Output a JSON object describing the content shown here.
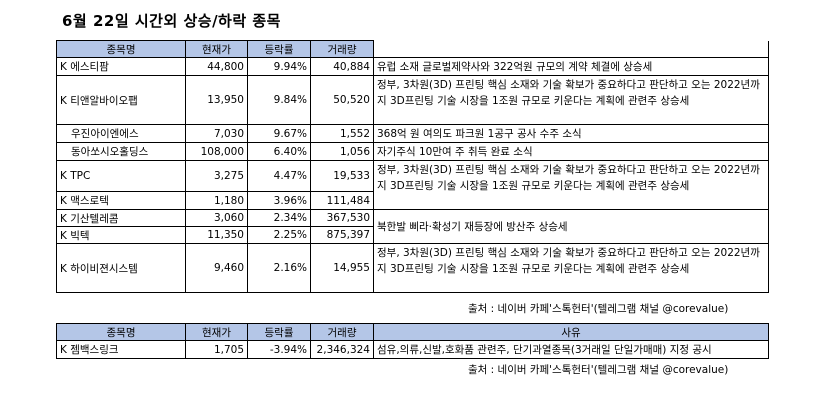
{
  "title": "6월 22일  시간외 상승/하락 종목",
  "headers": [
    "종목명",
    "현재가",
    "등락률",
    "거래량",
    ""
  ],
  "rows": [
    {
      "name": "K 에스티팜",
      "price": "44,800",
      "change": "9.94%",
      "volume": "40,884",
      "desc": "유럽 소재 글로벌제약사와 322억원 규모의 계약 체결에 상승세"
    },
    {
      "name": "K 티앤알바이오팹",
      "price": "13,950",
      "change": "9.84%",
      "volume": "50,520",
      "desc": "정부, 3차원(3D) 프린팅 핵심 소재와 기술 확보가 중요하다고 판단하고 오는 2022년까지 3D프린팅 기술 시장을 1조원 규모로 키운다는 계획에 관련주 상승세"
    },
    {
      "name": "우진아이엔에스",
      "price": "7,030",
      "change": "9.67%",
      "volume": "1,552",
      "desc": "368억 원 여의도 파크원 1공구 공사 수주 소식"
    },
    {
      "name": "동아쏘시오홀딩스",
      "price": "108,000",
      "change": "6.40%",
      "volume": "1,056",
      "desc": "자기주식 10만여 주 취득 완료 소식"
    },
    {
      "name": "K TPC",
      "price": "3,275",
      "change": "4.47%",
      "volume": "19,533",
      "desc": "정부, 3차원(3D) 프린팅 핵심 소재와 기술 확보가 중요하다고 판단하고 오는 2022년까지 3D프린팅 기술 시장을 1조원 규모로 키운다는 계획에 관련주 상승세"
    },
    {
      "name": "K 맥스로텍",
      "price": "1,180",
      "change": "3.96%",
      "volume": "111,484",
      "desc": ""
    },
    {
      "name": "K 기산텔레콤",
      "price": "3,060",
      "change": "2.34%",
      "volume": "367,530",
      "desc": "북한발 삐라·확성기 재등장에 방산주 상승세"
    },
    {
      "name": "K 빅텍",
      "price": "11,350",
      "change": "2.25%",
      "volume": "875,397",
      "desc": ""
    },
    {
      "name": "K 하이비젼시스템",
      "price": "9,460",
      "change": "2.16%",
      "volume": "14,955",
      "desc": "정부, 3차원(3D) 프린팅 핵심 소재와 기술 확보가 중요하다고 판단하고 오는 2022년까지 3D프린팅 기술 시장을 1조원 규모로 키운다는 계획에 관련주 상승세"
    }
  ],
  "source": "출처 : 네이버 카페'스톡헌터'(텔레그램 채널 @corevalue)",
  "headers2": [
    "종목명",
    "현재가",
    "등락률",
    "거래량",
    "사유"
  ],
  "rows2": [
    {
      "name": "K 젬백스링크",
      "price": "1,705",
      "change": "-3.94%",
      "volume": "2,346,324",
      "desc": "섬유,의류,신발,호화품 관련주, 단기과열종목(3거래일 단일가매매) 지정 공시"
    }
  ],
  "source2": "출처 : 네이버 카페'스톡헌터'(텔레그램 채널 @corevalue)"
}
